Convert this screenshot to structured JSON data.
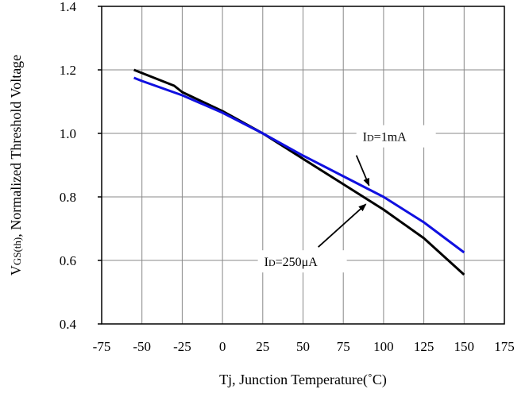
{
  "chart_data": {
    "type": "line",
    "xlabel": "Tj, Junction Temperature(˚C)",
    "ylabel_main": "V",
    "ylabel_sub": "GS(th)",
    "ylabel_rest": ", Normalized Threshold Voltage",
    "xlim": [
      -75,
      175
    ],
    "ylim": [
      0.4,
      1.4
    ],
    "x_ticks": [
      "-75",
      "-50",
      "-25",
      "0",
      "25",
      "50",
      "75",
      "100",
      "125",
      "150",
      "175"
    ],
    "y_ticks": [
      "0.4",
      "0.6",
      "0.8",
      "1.0",
      "1.2",
      "1.4"
    ],
    "grid": true,
    "series": [
      {
        "name": "ID=250μA",
        "color": "#000000",
        "x": [
          -55,
          -30,
          -25,
          0,
          25,
          50,
          75,
          100,
          125,
          150
        ],
        "y": [
          1.2,
          1.15,
          1.13,
          1.07,
          1.0,
          0.92,
          0.84,
          0.76,
          0.67,
          0.555
        ]
      },
      {
        "name": "ID=1mA",
        "color": "#1010e0",
        "x": [
          -55,
          -50,
          -25,
          0,
          25,
          50,
          75,
          100,
          125,
          150
        ],
        "y": [
          1.175,
          1.165,
          1.12,
          1.065,
          1.0,
          0.93,
          0.865,
          0.8,
          0.72,
          0.625
        ]
      }
    ],
    "annotations": [
      {
        "prefix": "I",
        "sub": "D",
        "suffix": "=1mA",
        "target_series": 1,
        "target_x": 92
      },
      {
        "prefix": "I",
        "sub": "D",
        "suffix": "=250μA",
        "target_series": 0,
        "target_x": 90
      }
    ]
  }
}
